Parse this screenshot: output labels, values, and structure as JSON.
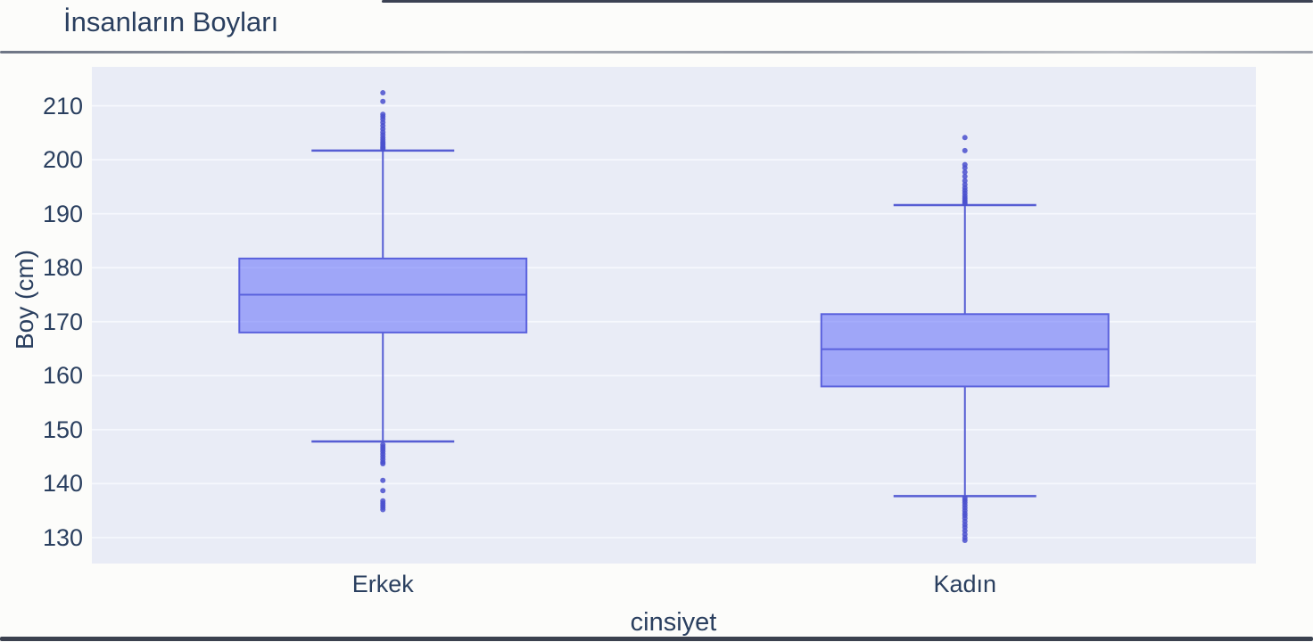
{
  "page": {
    "background": "#fcfcfa"
  },
  "chart": {
    "title": "İnsanların Boyları",
    "y_axis_title": "Boy (cm)",
    "x_axis_title": "cinsiyet",
    "colors": {
      "text": "#2a3f5f",
      "plot_background": "#e9ecf6",
      "gridline": "#f6f8fd",
      "box_fill": "rgba(99,110,250,0.55)",
      "box_line": "#5a61dd",
      "whisker_line": "#565dd3",
      "outlier": "#4a50ce",
      "edge_artifact": "#272e40"
    }
  },
  "chart_data": {
    "type": "box",
    "title": "İnsanların Boyları",
    "xlabel": "cinsiyet",
    "ylabel": "Boy (cm)",
    "categories": [
      "Erkek",
      "Kadın"
    ],
    "ylim": [
      125.2,
      217.2
    ],
    "yticks": [
      130,
      140,
      150,
      160,
      170,
      180,
      190,
      200,
      210
    ],
    "grid": true,
    "legend_visible": false,
    "boxes": [
      {
        "category": "Erkek",
        "whisker_low": 147.8,
        "q1": 168.0,
        "median": 175.0,
        "q3": 181.7,
        "whisker_high": 201.7,
        "outliers_high": [
          202.0,
          202.2,
          202.4,
          202.7,
          203.0,
          203.3,
          203.7,
          204.1,
          204.6,
          205.1,
          205.7,
          206.3,
          206.9,
          207.5,
          208.0,
          208.4,
          210.8,
          212.4
        ],
        "outliers_low": [
          147.2,
          146.8,
          146.4,
          146.0,
          145.5,
          145.0,
          144.5,
          144.0,
          143.7,
          140.6,
          138.7,
          136.8,
          136.4,
          136.0,
          135.6,
          135.2
        ]
      },
      {
        "category": "Kadın",
        "whisker_low": 137.7,
        "q1": 158.0,
        "median": 164.9,
        "q3": 171.4,
        "whisker_high": 191.6,
        "outliers_high": [
          191.9,
          192.2,
          192.5,
          192.9,
          193.3,
          193.8,
          194.3,
          194.8,
          195.4,
          196.1,
          196.9,
          197.7,
          198.5,
          199.1,
          201.7,
          204.1
        ],
        "outliers_low": [
          137.3,
          136.9,
          136.5,
          136.0,
          135.5,
          135.0,
          134.5,
          134.1,
          133.6,
          133.0,
          132.4,
          131.9,
          131.3,
          130.6,
          130.0,
          129.5
        ]
      }
    ]
  }
}
